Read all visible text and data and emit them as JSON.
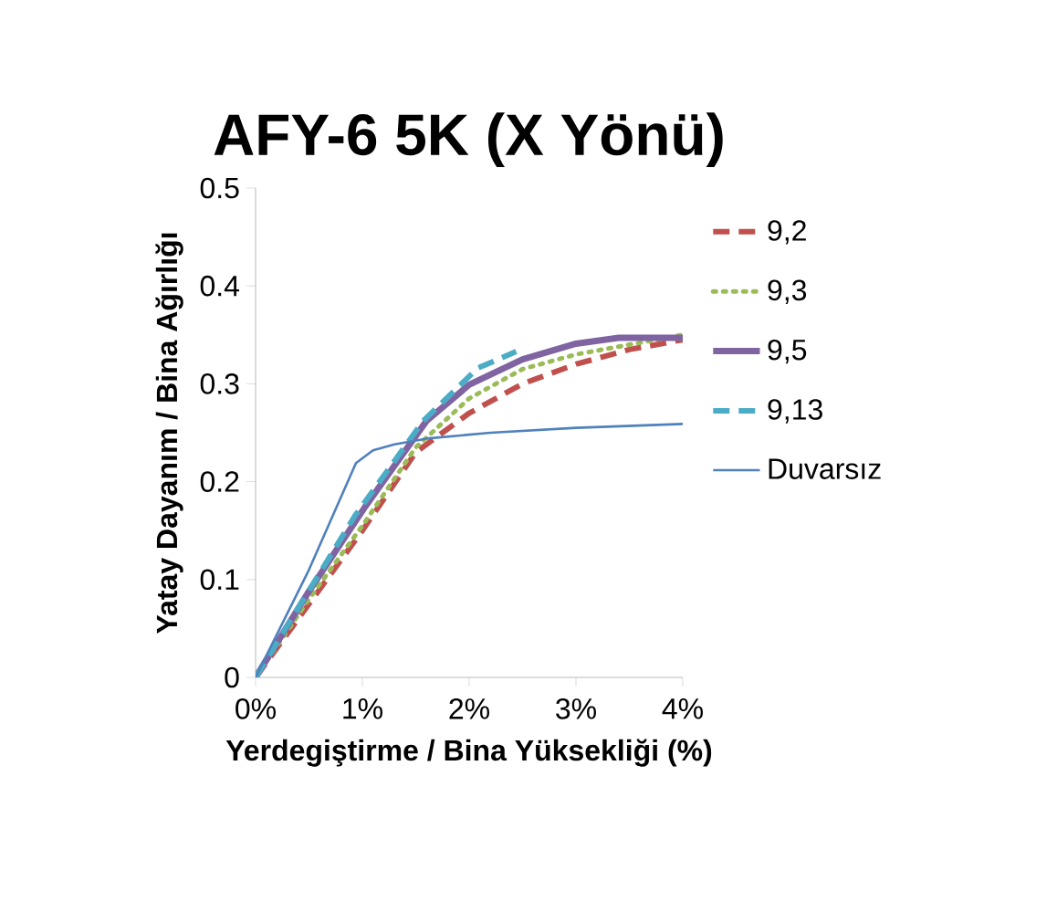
{
  "chart_data": {
    "type": "line",
    "title": "AFY-6  5K  (X Yönü)",
    "xlabel": "Yerdegiştirme / Bina Yüksekliği (%)",
    "ylabel": "Yatay Dayanım / Bina Ağırlığı",
    "xlim": [
      0,
      4
    ],
    "xticks": [
      {
        "value": 0,
        "label": "0%"
      },
      {
        "value": 1,
        "label": "1%"
      },
      {
        "value": 2,
        "label": "2%"
      },
      {
        "value": 3,
        "label": "3%"
      },
      {
        "value": 4,
        "label": "4%"
      }
    ],
    "ylim": [
      0,
      0.5
    ],
    "yticks": [
      0,
      0.1,
      0.2,
      0.3,
      0.4,
      0.5
    ],
    "grid": false,
    "legend": "right",
    "marker": "none",
    "series": [
      {
        "name": "9,2",
        "color": "#c0504d",
        "line_style": "dashed",
        "x": [
          0,
          0.5,
          1,
          1.5,
          2,
          2.5,
          3,
          3.5,
          4
        ],
        "values": [
          0,
          0.075,
          0.15,
          0.23,
          0.27,
          0.3,
          0.32,
          0.335,
          0.345
        ]
      },
      {
        "name": "9,3",
        "color": "#9bbb59",
        "line_style": "dotted",
        "x": [
          0,
          0.5,
          1,
          1.5,
          2,
          2.5,
          3,
          3.5,
          4
        ],
        "values": [
          0,
          0.08,
          0.155,
          0.235,
          0.285,
          0.315,
          0.33,
          0.34,
          0.35
        ]
      },
      {
        "name": "9,5",
        "color": "#8064a2",
        "line_style": "solid",
        "x": [
          0,
          0.5,
          1.03,
          1.6,
          2,
          2.5,
          3,
          3.4,
          4
        ],
        "values": [
          0,
          0.088,
          0.175,
          0.262,
          0.299,
          0.325,
          0.341,
          0.347,
          0.347
        ]
      },
      {
        "name": "9,13",
        "color": "#4bacc6",
        "line_style": "dashed",
        "x": [
          0,
          0.36,
          0.93,
          1.57,
          2.08,
          2.44
        ],
        "values": [
          0,
          0.064,
          0.165,
          0.262,
          0.316,
          0.333
        ]
      },
      {
        "name": "Duvarsız",
        "color": "#4f81bd",
        "line_style": "solid",
        "x": [
          0,
          0.5,
          0.94,
          1.1,
          1.3,
          1.6,
          2.2,
          3,
          4
        ],
        "values": [
          0,
          0.11,
          0.219,
          0.232,
          0.238,
          0.244,
          0.25,
          0.255,
          0.259
        ]
      }
    ]
  }
}
